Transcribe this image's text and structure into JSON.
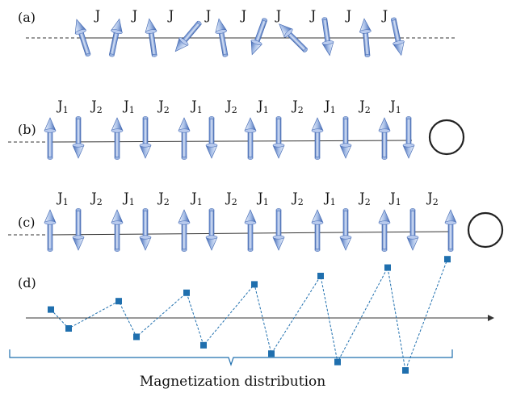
{
  "panels": {
    "a": {
      "label": "(a)",
      "coupling": "J",
      "couplings": [
        "J",
        "J",
        "J",
        "J",
        "J",
        "J",
        "J",
        "J",
        "J"
      ]
    },
    "b": {
      "label": "(b)",
      "couplings": [
        {
          "base": "J",
          "sub": "1"
        },
        {
          "base": "J",
          "sub": "2"
        },
        {
          "base": "J",
          "sub": "1"
        },
        {
          "base": "J",
          "sub": "2"
        },
        {
          "base": "J",
          "sub": "1"
        },
        {
          "base": "J",
          "sub": "2"
        },
        {
          "base": "J",
          "sub": "1"
        },
        {
          "base": "J",
          "sub": "2"
        },
        {
          "base": "J",
          "sub": "1"
        },
        {
          "base": "J",
          "sub": "2"
        },
        {
          "base": "J",
          "sub": "1"
        }
      ]
    },
    "c": {
      "label": "(c)",
      "couplings": [
        {
          "base": "J",
          "sub": "1"
        },
        {
          "base": "J",
          "sub": "2"
        },
        {
          "base": "J",
          "sub": "1"
        },
        {
          "base": "J",
          "sub": "2"
        },
        {
          "base": "J",
          "sub": "1"
        },
        {
          "base": "J",
          "sub": "2"
        },
        {
          "base": "J",
          "sub": "1"
        },
        {
          "base": "J",
          "sub": "2"
        },
        {
          "base": "J",
          "sub": "1"
        },
        {
          "base": "J",
          "sub": "2"
        },
        {
          "base": "J",
          "sub": "1"
        },
        {
          "base": "J",
          "sub": "2"
        }
      ]
    },
    "d": {
      "label": "(d)",
      "magnetization": [
        0.4,
        -0.5,
        0.8,
        -0.9,
        1.2,
        -1.3,
        1.6,
        -1.7,
        2.0,
        -2.1,
        2.4,
        -2.5,
        2.8
      ]
    }
  },
  "caption": "Magnetization distribution",
  "colors": {
    "arrow_light": "#d7e3f7",
    "arrow_mid": "#7d9fd8",
    "arrow_dark": "#3d64b0",
    "marker": "#1f6fae",
    "line": "#333333"
  }
}
